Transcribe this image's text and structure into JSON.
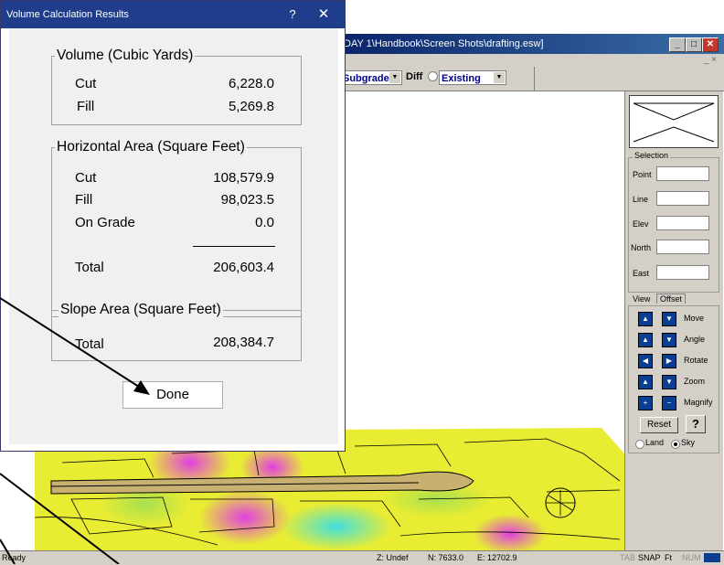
{
  "dialog": {
    "title": "Volume Calculation Results",
    "help_glyph": "?",
    "close_glyph": "✕",
    "volume": {
      "heading": "Volume (Cubic Yards)",
      "rows": [
        {
          "label": "Cut",
          "value": "6,228.0"
        },
        {
          "label": "Fill",
          "value": "5,269.8"
        }
      ]
    },
    "horizontal": {
      "heading": "Horizontal Area (Square Feet)",
      "rows": [
        {
          "label": "Cut",
          "value": "108,579.9"
        },
        {
          "label": "Fill",
          "value": "98,023.5"
        },
        {
          "label": "On Grade",
          "value": "0.0"
        }
      ],
      "total_label": "Total",
      "total_value": "206,603.4"
    },
    "slope": {
      "heading": "Slope Area (Square Feet)",
      "total_label": "Total",
      "total_value": "208,384.7"
    },
    "done_label": "Done"
  },
  "app": {
    "title_fragment": "DAY 1\\Handbook\\Screen Shots\\drafting.esw]",
    "menu_controls": "_ ×",
    "toolbar": {
      "subgrade": "Subgrade",
      "diff": "Diff",
      "existing": "Existing"
    },
    "panel": {
      "selection_label": "Selection",
      "fields": [
        "Point",
        "Line",
        "Elev",
        "North",
        "East"
      ],
      "tabs": [
        "View",
        "Offset"
      ],
      "nav": [
        "Move",
        "Angle",
        "Rotate",
        "Zoom",
        "Magnify"
      ],
      "reset_label": "Reset",
      "help_glyph": "?",
      "land_label": "Land",
      "sky_label": "Sky"
    },
    "status": {
      "ready": "Ready",
      "z": "Z: Undef",
      "n": "N: 7633.0",
      "e": "E: 12702.9",
      "tab": "TAB",
      "snap": "SNAP",
      "ft": "Ft",
      "num": "NUM"
    }
  },
  "colors": {
    "dialog_title_bg": "#1f3d8a",
    "dialog_body_bg": "#f0f0f0",
    "app_title_bg": "#0a246a",
    "panel_bg": "#d4d0c8",
    "terrain_yellow": "#e8ec33",
    "terrain_magenta": "#e040e0",
    "terrain_cyan": "#40e0e0"
  }
}
